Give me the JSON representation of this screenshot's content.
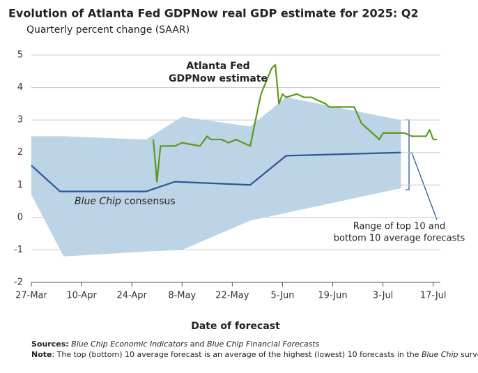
{
  "chart_data": {
    "type": "line",
    "title": "Evolution of Atlanta Fed GDPNow real GDP estimate for 2025: Q2",
    "subtitle": "Quarterly percent change (SAAR)",
    "x_label": "Date of forecast",
    "xlim": [
      "27-Mar",
      "19-Jul"
    ],
    "xticks": [
      "27-Mar",
      "10-Apr",
      "24-Apr",
      "8-May",
      "22-May",
      "5-Jun",
      "19-Jun",
      "3-Jul",
      "17-Jul"
    ],
    "ylim": [
      -2,
      5
    ],
    "yticks": [
      -2,
      -1,
      0,
      1,
      2,
      3,
      4,
      5
    ],
    "grid": true,
    "band": {
      "color": "#bdd3e6",
      "label_color": "#2b5797",
      "label_lines": [
        "Range of top 10 and",
        "bottom 10 average forecasts"
      ],
      "x": [
        "27-Mar",
        "5-Apr",
        "28-Apr",
        "8-May",
        "27-May",
        "6-Jun",
        "8-Jul"
      ],
      "high": [
        2.5,
        2.5,
        2.4,
        3.1,
        2.8,
        3.7,
        3.0
      ],
      "low": [
        0.7,
        -1.2,
        -1.05,
        -1.0,
        -0.1,
        0.14,
        0.9
      ]
    },
    "series": [
      {
        "label_parts": [
          {
            "text": "Blue Chip",
            "italic": true
          },
          {
            "text": " consensus"
          }
        ],
        "color": "#2b5797",
        "x": [
          "27-Mar",
          "4-Apr",
          "28-Apr",
          "6-May",
          "27-May",
          "6-Jun",
          "8-Jul"
        ],
        "values": [
          1.6,
          0.8,
          0.8,
          1.1,
          1.0,
          1.9,
          2.0
        ]
      },
      {
        "label_lines": [
          "Atlanta Fed",
          "GDPNow estimate"
        ],
        "color": "#5b9a1b",
        "x": [
          "30-Apr",
          "1-May",
          "2-May",
          "6-May",
          "8-May",
          "13-May",
          "15-May",
          "16-May",
          "19-May",
          "21-May",
          "23-May",
          "27-May",
          "30-May",
          "2-Jun",
          "3-Jun",
          "4-Jun",
          "5-Jun",
          "6-Jun",
          "9-Jun",
          "11-Jun",
          "13-Jun",
          "17-Jun",
          "18-Jun",
          "25-Jun",
          "27-Jun",
          "2-Jul",
          "3-Jul",
          "9-Jul",
          "11-Jul",
          "15-Jul",
          "16-Jul",
          "17-Jul",
          "18-Jul"
        ],
        "values": [
          2.4,
          1.1,
          2.2,
          2.2,
          2.3,
          2.2,
          2.5,
          2.4,
          2.4,
          2.3,
          2.4,
          2.2,
          3.8,
          4.6,
          4.7,
          3.5,
          3.8,
          3.7,
          3.8,
          3.7,
          3.7,
          3.5,
          3.4,
          3.4,
          2.9,
          2.4,
          2.6,
          2.6,
          2.5,
          2.5,
          2.7,
          2.4,
          2.4
        ]
      }
    ],
    "notes": [
      [
        {
          "text": "Sources:",
          "bold": true
        },
        {
          "text": " "
        },
        {
          "text": "Blue Chip Economic Indicators",
          "italic": true
        },
        {
          "text": " and "
        },
        {
          "text": "Blue Chip Financial Forecasts",
          "italic": true
        }
      ],
      [
        {
          "text": "Note",
          "bold": true
        },
        {
          "text": ": The top (bottom) 10 average forecast is an average of the highest (lowest) 10 forecasts in the "
        },
        {
          "text": "Blue Chip",
          "italic": true
        },
        {
          "text": " survey."
        }
      ]
    ]
  }
}
